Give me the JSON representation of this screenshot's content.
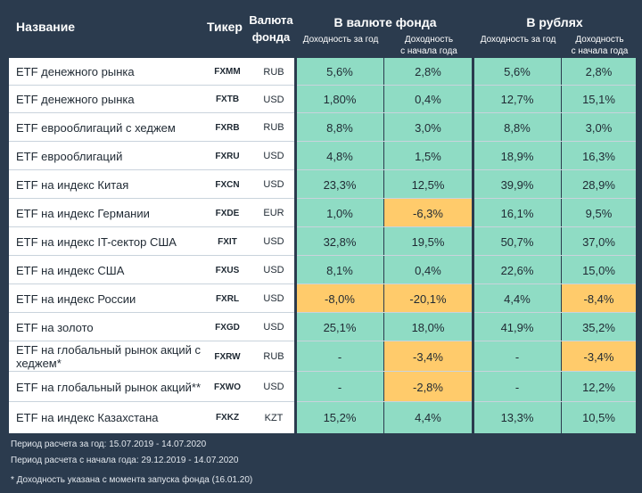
{
  "header": {
    "name": "Название",
    "ticker": "Тикер",
    "currency_line1": "Валюта",
    "currency_line2": "фонда",
    "group_fund": "В валюте фонда",
    "group_rub": "В рублях",
    "sub_year": "Доходность за год",
    "sub_ytd_line1": "Доходность",
    "sub_ytd_line2": "с начала года"
  },
  "rows": [
    {
      "name": "ETF денежного рынка",
      "ticker": "FXMM",
      "currency": "RUB",
      "fund_year": "5,6%",
      "fund_ytd": "2,8%",
      "rub_year": "5,6%",
      "rub_ytd": "2,8%"
    },
    {
      "name": "ETF денежного рынка",
      "ticker": "FXTB",
      "currency": "USD",
      "fund_year": "1,80%",
      "fund_ytd": "0,4%",
      "rub_year": "12,7%",
      "rub_ytd": "15,1%"
    },
    {
      "name": "ETF еврооблигаций с хеджем",
      "ticker": "FXRB",
      "currency": "RUB",
      "fund_year": "8,8%",
      "fund_ytd": "3,0%",
      "rub_year": "8,8%",
      "rub_ytd": "3,0%"
    },
    {
      "name": "ETF еврооблигаций",
      "ticker": "FXRU",
      "currency": "USD",
      "fund_year": "4,8%",
      "fund_ytd": "1,5%",
      "rub_year": "18,9%",
      "rub_ytd": "16,3%"
    },
    {
      "name": "ETF на индекс Китая",
      "ticker": "FXCN",
      "currency": "USD",
      "fund_year": "23,3%",
      "fund_ytd": "12,5%",
      "rub_year": "39,9%",
      "rub_ytd": "28,9%"
    },
    {
      "name": "ETF на индекс Германии",
      "ticker": "FXDE",
      "currency": "EUR",
      "fund_year": "1,0%",
      "fund_ytd": "-6,3%",
      "rub_year": "16,1%",
      "rub_ytd": "9,5%"
    },
    {
      "name": "ETF на индекс IT-сектор США",
      "ticker": "FXIT",
      "currency": "USD",
      "fund_year": "32,8%",
      "fund_ytd": "19,5%",
      "rub_year": "50,7%",
      "rub_ytd": "37,0%"
    },
    {
      "name": "ETF на индекс США",
      "ticker": "FXUS",
      "currency": "USD",
      "fund_year": "8,1%",
      "fund_ytd": "0,4%",
      "rub_year": "22,6%",
      "rub_ytd": "15,0%"
    },
    {
      "name": "ETF на индекс России",
      "ticker": "FXRL",
      "currency": "USD",
      "fund_year": "-8,0%",
      "fund_ytd": "-20,1%",
      "rub_year": "4,4%",
      "rub_ytd": "-8,4%"
    },
    {
      "name": "ETF на золото",
      "ticker": "FXGD",
      "currency": "USD",
      "fund_year": "25,1%",
      "fund_ytd": "18,0%",
      "rub_year": "41,9%",
      "rub_ytd": "35,2%"
    },
    {
      "name": "ETF на глобальный рынок акций с хеджем*",
      "ticker": "FXRW",
      "currency": "RUB",
      "fund_year": "-",
      "fund_ytd": "-3,4%",
      "rub_year": "-",
      "rub_ytd": "-3,4%"
    },
    {
      "name": "ETF на глобальный рынок акций**",
      "ticker": "FXWO",
      "currency": "USD",
      "fund_year": "-",
      "fund_ytd": "-2,8%",
      "rub_year": "-",
      "rub_ytd": "12,2%"
    },
    {
      "name": "ETF на индекс Казахстана",
      "ticker": "FXKZ",
      "currency": "KZT",
      "fund_year": "15,2%",
      "fund_ytd": "4,4%",
      "rub_year": "13,3%",
      "rub_ytd": "10,5%"
    }
  ],
  "footer": {
    "period_year": "Период расчета за год: 15.07.2019 - 14.07.2020",
    "period_ytd": "Период расчета с начала года: 29.12.2019 - 14.07.2020",
    "note": "* Доходность указана с момента запуска фонда (16.01.20)"
  },
  "colors": {
    "background": "#2b3b4e",
    "positive_cell": "#8fdcc4",
    "negative_cell": "#ffcb6b",
    "name_cell": "#ffffff"
  }
}
